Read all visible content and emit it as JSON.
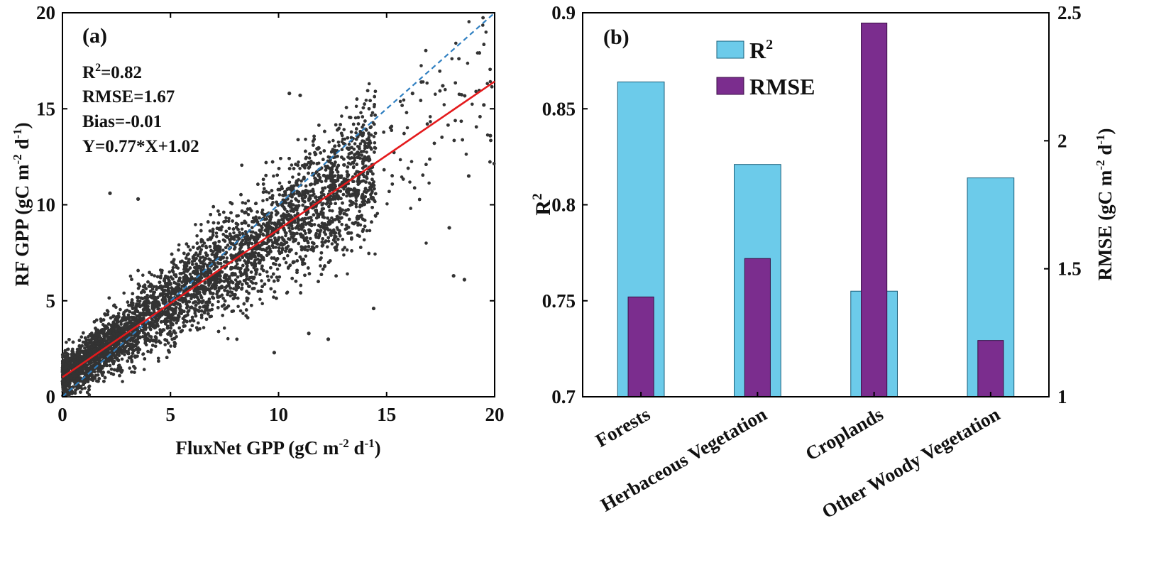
{
  "chart_data": [
    {
      "type": "scatter",
      "panel_label": "(a)",
      "xlabel": "FluxNet GPP (gC m-2 d-1)",
      "ylabel": "RF GPP (gC m-2 d-1)",
      "xlim": [
        0,
        20
      ],
      "ylim": [
        0,
        20
      ],
      "x_ticks": [
        "0",
        "5",
        "10",
        "15",
        "20"
      ],
      "y_ticks": [
        "0",
        "5",
        "10",
        "15",
        "20"
      ],
      "stats": {
        "r2": "R2=0.82",
        "rmse": "RMSE=1.67",
        "bias": "Bias=-0.01",
        "fit": "Y=0.77*X+1.02"
      },
      "regression": {
        "slope": 0.77,
        "intercept": 1.02,
        "color": "#e41a1c"
      },
      "one_to_one": {
        "slope": 1,
        "intercept": 0,
        "color": "#2f7fc1"
      },
      "point_color": "#333333",
      "point_cloud": {
        "approx_count": 9000,
        "x_range": [
          0,
          20
        ],
        "y_model": "y = 0.77*x + 1.02 + noise",
        "outliers": [
          [
            10.5,
            15.8
          ],
          [
            11.0,
            15.7
          ],
          [
            16.2,
            15.8
          ],
          [
            17.6,
            16.2
          ],
          [
            19.5,
            15.2
          ],
          [
            19.8,
            13.6
          ],
          [
            18.8,
            11.5
          ],
          [
            17.9,
            8.8
          ],
          [
            18.1,
            6.3
          ],
          [
            18.6,
            6.1
          ],
          [
            2.2,
            10.6
          ],
          [
            3.5,
            10.3
          ],
          [
            12.3,
            3.0
          ],
          [
            9.8,
            2.3
          ],
          [
            14.4,
            4.6
          ],
          [
            11.4,
            3.3
          ]
        ]
      }
    },
    {
      "type": "bar",
      "panel_label": "(b)",
      "categories": [
        "Forests",
        "Herbaceous Vegetation",
        "Croplands",
        "Other Woody Vegetation"
      ],
      "series": [
        {
          "name": "R2",
          "axis": "left",
          "color": "#6ccbea",
          "values": [
            0.864,
            0.821,
            0.755,
            0.814
          ]
        },
        {
          "name": "RMSE",
          "axis": "right",
          "color": "#7b2d8e",
          "values": [
            1.39,
            1.54,
            2.46,
            1.22
          ]
        }
      ],
      "ylabel_left": "R2",
      "ylabel_right": "RMSE (gC m-2 d-1)",
      "ylim_left": [
        0.7,
        0.9
      ],
      "ylim_right": [
        1,
        2.5
      ],
      "y_ticks_left": [
        "0.7",
        "0.75",
        "0.8",
        "0.85",
        "0.9"
      ],
      "y_ticks_right": [
        "1",
        "1.5",
        "2",
        "2.5"
      ],
      "legend": [
        "R2",
        "RMSE"
      ],
      "legend_position": "top-left"
    }
  ],
  "labels": {
    "a": "(a)",
    "b": "(b)",
    "xlabel_a": "FluxNet GPP (gC m",
    "xlabel_a_sup": "-2",
    "xlabel_a_tail": " d",
    "xlabel_a_sup2": "-1",
    "xlabel_a_close": ")",
    "ylabel_a": "RF GPP (gC m",
    "ylabel_a_sup": "-2",
    "ylabel_a_tail": " d",
    "ylabel_a_sup2": "-1",
    "ylabel_a_close": ")",
    "r2_text": "R",
    "r2_sup": "2",
    "r2_value": "=0.82",
    "rmse_text": "RMSE=1.67",
    "bias_text": "Bias=-0.01",
    "fit_text": "Y=0.77*X+1.02",
    "ylabel_b_left": "R",
    "ylabel_b_left_sup": "2",
    "ylabel_b_right": "RMSE (gC m",
    "ylabel_b_right_sup": "-2",
    "ylabel_b_right_tail": " d",
    "ylabel_b_right_sup2": "-1",
    "ylabel_b_right_close": ")",
    "legend_r2": "R",
    "legend_r2_sup": "2",
    "legend_rmse": "RMSE"
  }
}
